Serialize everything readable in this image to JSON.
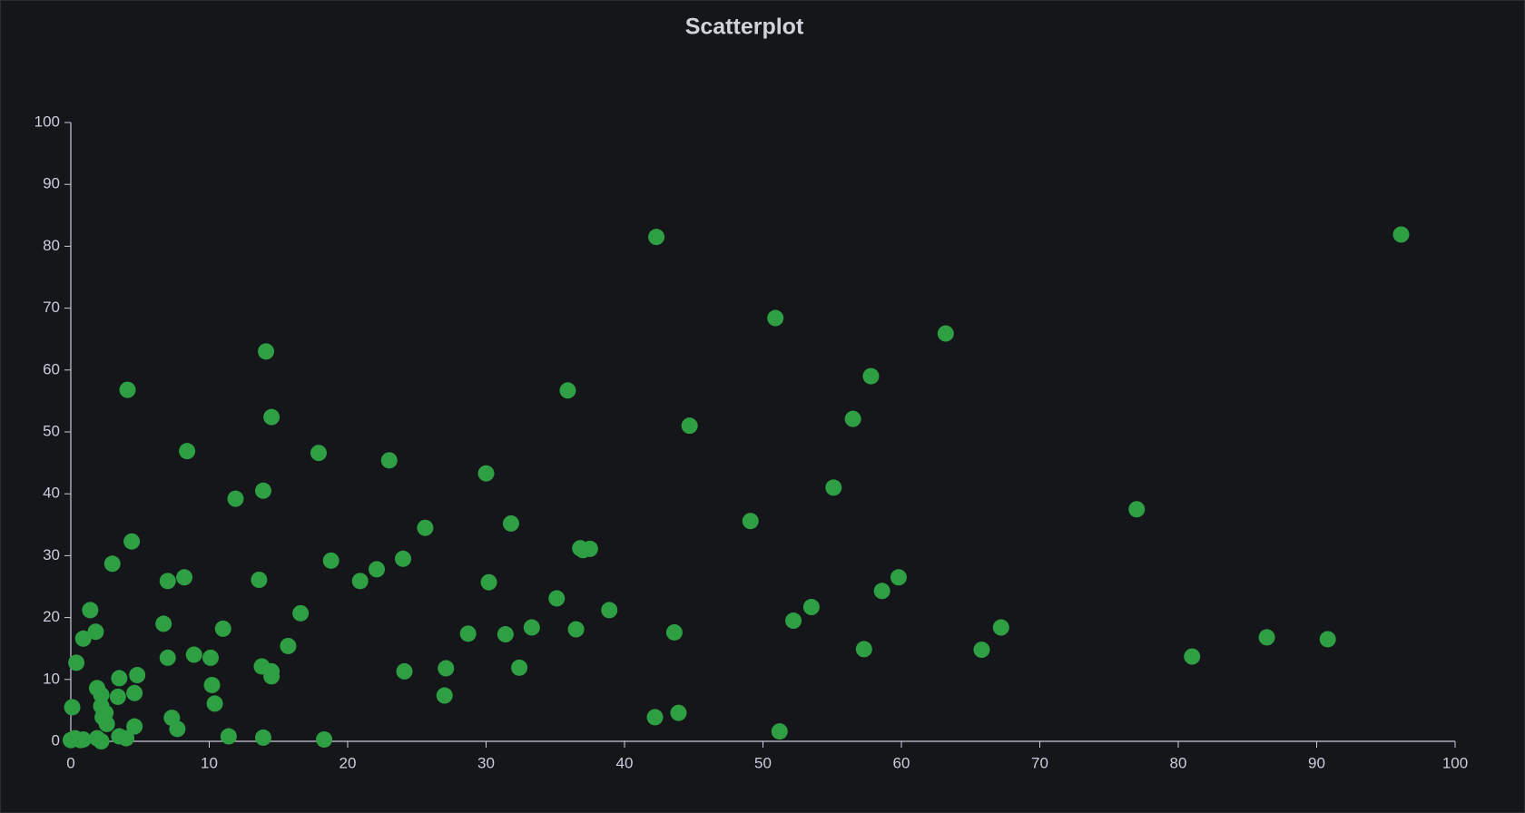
{
  "chart_data": {
    "type": "scatter",
    "title": "Scatterplot",
    "color": "#2ea043",
    "xlim": [
      0,
      100
    ],
    "ylim": [
      0,
      100
    ],
    "xticks": [
      0,
      10,
      20,
      30,
      40,
      50,
      60,
      70,
      80,
      90,
      100
    ],
    "yticks": [
      0,
      10,
      20,
      30,
      40,
      50,
      60,
      70,
      80,
      90,
      100
    ],
    "x": [
      42.3,
      96.1,
      50.9,
      63.2,
      14.1,
      57.8,
      4.1,
      35.9,
      14.5,
      56.5,
      44.7,
      8.4,
      17.9,
      23.0,
      30.0,
      55.1,
      13.9,
      11.9,
      77.0,
      49.1,
      31.8,
      25.6,
      4.4,
      36.8,
      37.5,
      37.0,
      24.0,
      18.8,
      3.0,
      22.1,
      8.2,
      59.8,
      7.0,
      13.6,
      20.9,
      30.2,
      58.6,
      35.1,
      53.5,
      1.4,
      38.9,
      16.6,
      52.2,
      6.7,
      33.3,
      67.2,
      11.0,
      36.5,
      1.8,
      43.6,
      28.7,
      31.4,
      0.9,
      86.4,
      90.8,
      15.7,
      57.3,
      65.8,
      8.9,
      81.0,
      7.0,
      10.1,
      0.4,
      13.8,
      32.4,
      27.1,
      14.5,
      24.1,
      4.8,
      14.5,
      3.5,
      10.2,
      1.9,
      4.6,
      2.2,
      3.4,
      27.0,
      10.4,
      2.2,
      0.1,
      2.5,
      43.9,
      2.3,
      7.3,
      42.2,
      2.6,
      4.6,
      7.7,
      51.2,
      11.4,
      13.9,
      3.5,
      1.9,
      4.0,
      18.3,
      0.0,
      0.7,
      2.2,
      0.3,
      0.9
    ],
    "values": [
      81.5,
      81.9,
      68.4,
      65.9,
      63.0,
      59.0,
      56.8,
      56.7,
      52.4,
      52.1,
      51.0,
      46.9,
      46.6,
      45.4,
      43.3,
      41.0,
      40.5,
      39.2,
      37.5,
      35.6,
      35.2,
      34.5,
      32.3,
      31.2,
      31.1,
      30.9,
      29.5,
      29.2,
      28.7,
      27.8,
      26.5,
      26.5,
      25.9,
      26.1,
      25.9,
      25.7,
      24.3,
      23.1,
      21.7,
      21.2,
      21.2,
      20.7,
      19.5,
      19.0,
      18.4,
      18.4,
      18.2,
      18.1,
      17.7,
      17.6,
      17.4,
      17.3,
      16.6,
      16.8,
      16.5,
      15.4,
      14.9,
      14.8,
      14.0,
      13.7,
      13.5,
      13.5,
      12.7,
      12.1,
      11.9,
      11.8,
      11.3,
      11.3,
      10.7,
      10.5,
      10.2,
      9.1,
      8.6,
      7.8,
      7.5,
      7.2,
      7.4,
      6.1,
      5.7,
      5.5,
      4.6,
      4.6,
      3.9,
      3.8,
      3.9,
      2.8,
      2.4,
      2.0,
      1.6,
      0.8,
      0.6,
      0.8,
      0.5,
      0.5,
      0.3,
      0.2,
      0.2,
      0.0,
      0.5,
      0.3
    ]
  }
}
